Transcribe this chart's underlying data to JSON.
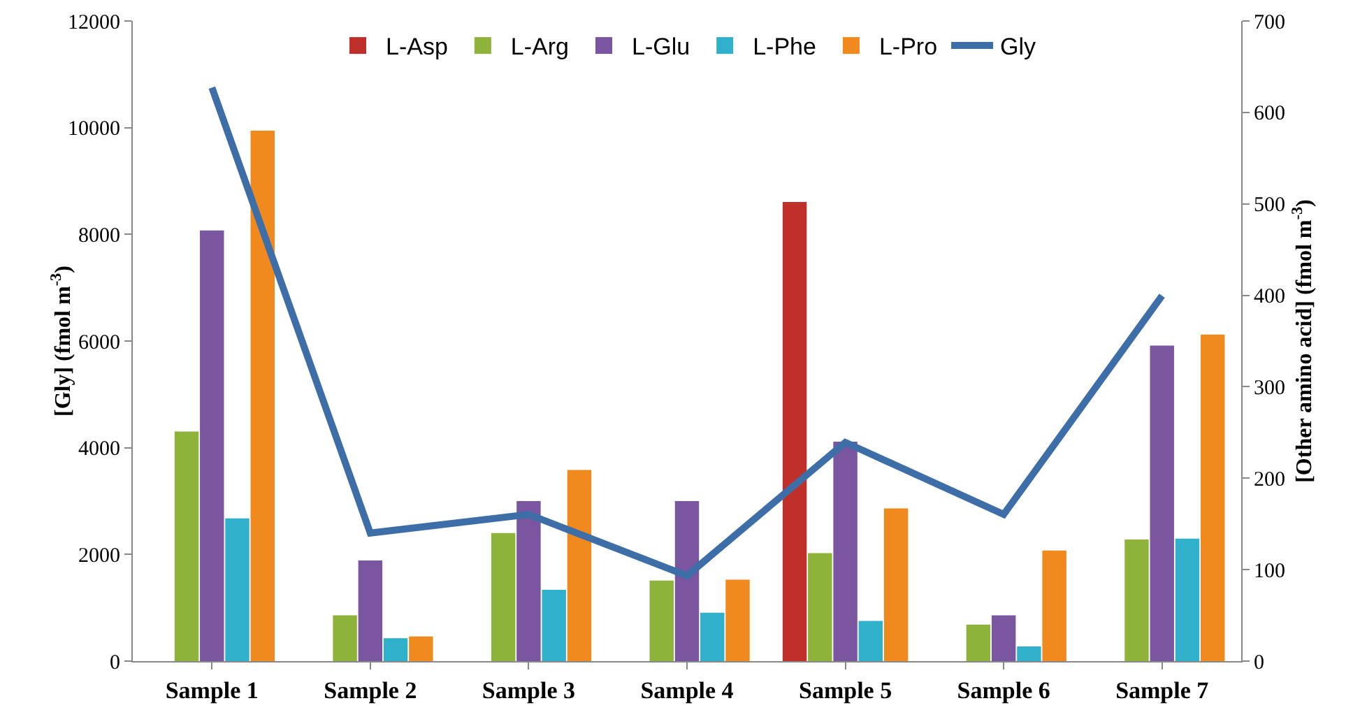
{
  "chart_data": {
    "type": "bar",
    "categories": [
      "Sample 1",
      "Sample 2",
      "Sample 3",
      "Sample 4",
      "Sample 5",
      "Sample 6",
      "Sample 7"
    ],
    "ylabel": "[Gly] (fmol m$^{-3}$)",
    "y2label": "[Other amino acid] (fmol m$^{-3}$)",
    "ylim": [
      0,
      12000
    ],
    "yticks": [
      0,
      2000,
      4000,
      6000,
      8000,
      10000,
      12000
    ],
    "y2lim": [
      0,
      700
    ],
    "y2ticks": [
      0,
      100,
      200,
      300,
      400,
      500,
      600,
      700
    ],
    "legend": "top",
    "grid": false,
    "series": [
      {
        "name": "L-Asp",
        "color": "#c0302a",
        "axis": "y2",
        "values": [
          null,
          null,
          null,
          null,
          502,
          null,
          null
        ]
      },
      {
        "name": "L-Arg",
        "color": "#8db33a",
        "axis": "y2",
        "values": [
          251,
          50,
          140,
          88,
          118,
          40,
          133
        ]
      },
      {
        "name": "L-Glu",
        "color": "#7a56a0",
        "axis": "y2",
        "values": [
          471,
          110,
          175,
          175,
          240,
          50,
          345
        ]
      },
      {
        "name": "L-Phe",
        "color": "#31b0cc",
        "axis": "y2",
        "values": [
          156,
          25,
          78,
          53,
          44,
          16,
          134
        ]
      },
      {
        "name": "L-Pro",
        "color": "#f08a1e",
        "axis": "y2",
        "values": [
          580,
          27,
          209,
          89,
          167,
          121,
          357
        ]
      },
      {
        "name": "Gly",
        "type": "line",
        "color": "#3e6ea8",
        "axis": "y",
        "marker": "none",
        "values": [
          10750,
          2400,
          2750,
          1600,
          4100,
          2750,
          6850
        ]
      }
    ]
  }
}
